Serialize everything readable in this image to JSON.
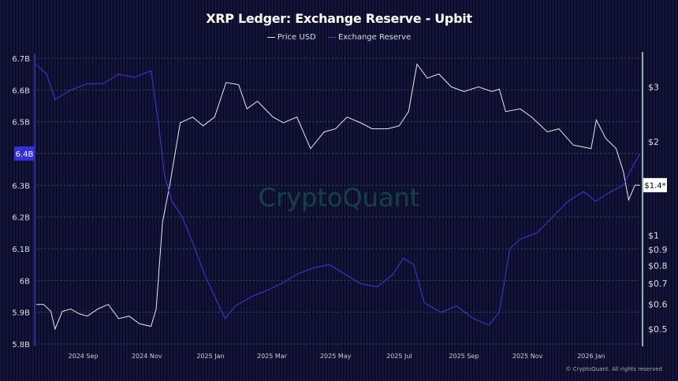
{
  "chart_data": {
    "type": "line",
    "title": "XRP Ledger: Exchange Reserve - Upbit",
    "legend_position": "top",
    "grid": true,
    "x_ticks": [
      "2024 Sep",
      "2024 Nov",
      "2025 Jan",
      "2025 Mar",
      "2025 May",
      "2025 Jul",
      "2025 Sep",
      "2025 Nov",
      "2026 Jan"
    ],
    "x_tick_dates": [
      "2024-09-01",
      "2024-11-01",
      "2025-01-01",
      "2025-03-01",
      "2025-05-01",
      "2025-07-01",
      "2025-09-01",
      "2025-11-01",
      "2026-01-01"
    ],
    "xlim": [
      "2024-07-18",
      "2026-02-17"
    ],
    "left_axis": {
      "ticks": [
        "6.7B",
        "6.6B",
        "6.5B",
        "6.4B",
        "6.3B",
        "6.2B",
        "6.1B",
        "6B",
        "5.9B",
        "5.8B"
      ],
      "tick_values": [
        6.7,
        6.6,
        6.5,
        6.4,
        6.3,
        6.2,
        6.1,
        6.0,
        5.9,
        5.8
      ],
      "ylim": [
        5.8,
        6.7
      ],
      "unit": "B",
      "current_label": "6.4B"
    },
    "right_axis": {
      "scale": "log",
      "ticks": [
        "$3",
        "$2",
        "$1",
        "$0.9",
        "$0.8",
        "$0.7",
        "$0.6",
        "$0.5"
      ],
      "tick_values": [
        3,
        2,
        1,
        0.9,
        0.8,
        0.7,
        0.6,
        0.5
      ],
      "current_label": "$1.4*"
    },
    "series": [
      {
        "name": "Price USD",
        "axis": "right",
        "color": "#e8e8e8",
        "x": [
          "2024-07-18",
          "2024-07-25",
          "2024-08-01",
          "2024-08-05",
          "2024-08-12",
          "2024-08-20",
          "2024-08-28",
          "2024-09-05",
          "2024-09-15",
          "2024-09-25",
          "2024-10-05",
          "2024-10-15",
          "2024-10-25",
          "2024-11-05",
          "2024-11-10",
          "2024-11-16",
          "2024-11-23",
          "2024-12-03",
          "2024-12-15",
          "2024-12-25",
          "2025-01-05",
          "2025-01-16",
          "2025-01-28",
          "2025-02-05",
          "2025-02-15",
          "2025-03-02",
          "2025-03-12",
          "2025-03-25",
          "2025-04-07",
          "2025-04-20",
          "2025-05-01",
          "2025-05-12",
          "2025-05-25",
          "2025-06-05",
          "2025-06-20",
          "2025-07-01",
          "2025-07-10",
          "2025-07-18",
          "2025-07-28",
          "2025-08-08",
          "2025-08-20",
          "2025-09-01",
          "2025-09-15",
          "2025-09-28",
          "2025-10-05",
          "2025-10-11",
          "2025-10-25",
          "2025-11-05",
          "2025-11-20",
          "2025-12-01",
          "2025-12-15",
          "2026-01-01",
          "2026-01-06",
          "2026-01-15",
          "2026-01-25",
          "2026-02-01",
          "2026-02-06",
          "2026-02-12",
          "2026-02-17"
        ],
        "values": [
          0.6,
          0.6,
          0.57,
          0.5,
          0.57,
          0.58,
          0.56,
          0.55,
          0.58,
          0.6,
          0.54,
          0.55,
          0.52,
          0.51,
          0.58,
          1.1,
          1.45,
          2.3,
          2.4,
          2.25,
          2.4,
          3.1,
          3.05,
          2.55,
          2.7,
          2.4,
          2.3,
          2.4,
          1.9,
          2.15,
          2.2,
          2.4,
          2.3,
          2.2,
          2.2,
          2.25,
          2.5,
          3.55,
          3.2,
          3.3,
          3.0,
          2.9,
          3.0,
          2.9,
          2.95,
          2.5,
          2.55,
          2.4,
          2.15,
          2.2,
          1.95,
          1.9,
          2.35,
          2.05,
          1.9,
          1.6,
          1.3,
          1.45,
          1.45
        ]
      },
      {
        "name": "Exchange Reserve",
        "axis": "left",
        "color": "#3a3ae8",
        "x": [
          "2024-07-18",
          "2024-07-28",
          "2024-08-05",
          "2024-08-20",
          "2024-09-05",
          "2024-09-20",
          "2024-10-05",
          "2024-10-20",
          "2024-11-05",
          "2024-11-12",
          "2024-11-18",
          "2024-11-25",
          "2024-12-05",
          "2024-12-15",
          "2024-12-25",
          "2025-01-05",
          "2025-01-15",
          "2025-01-25",
          "2025-02-10",
          "2025-02-25",
          "2025-03-10",
          "2025-03-25",
          "2025-04-10",
          "2025-04-25",
          "2025-05-10",
          "2025-05-25",
          "2025-06-10",
          "2025-06-25",
          "2025-07-05",
          "2025-07-15",
          "2025-07-25",
          "2025-08-10",
          "2025-08-25",
          "2025-09-10",
          "2025-09-25",
          "2025-10-05",
          "2025-10-15",
          "2025-10-25",
          "2025-11-10",
          "2025-11-25",
          "2025-12-10",
          "2025-12-25",
          "2026-01-05",
          "2026-01-20",
          "2026-02-01",
          "2026-02-10",
          "2026-02-17"
        ],
        "values": [
          6.68,
          6.65,
          6.57,
          6.6,
          6.62,
          6.62,
          6.65,
          6.64,
          6.66,
          6.5,
          6.33,
          6.25,
          6.2,
          6.12,
          6.03,
          5.95,
          5.88,
          5.92,
          5.95,
          5.97,
          5.99,
          6.02,
          6.04,
          6.05,
          6.02,
          5.99,
          5.98,
          6.02,
          6.07,
          6.05,
          5.93,
          5.9,
          5.92,
          5.88,
          5.86,
          5.9,
          6.1,
          6.13,
          6.15,
          6.2,
          6.25,
          6.28,
          6.25,
          6.28,
          6.3,
          6.36,
          6.4
        ]
      }
    ]
  },
  "watermark": "CryptoQuant",
  "footer": "© CryptoQuant. All rights reserved"
}
